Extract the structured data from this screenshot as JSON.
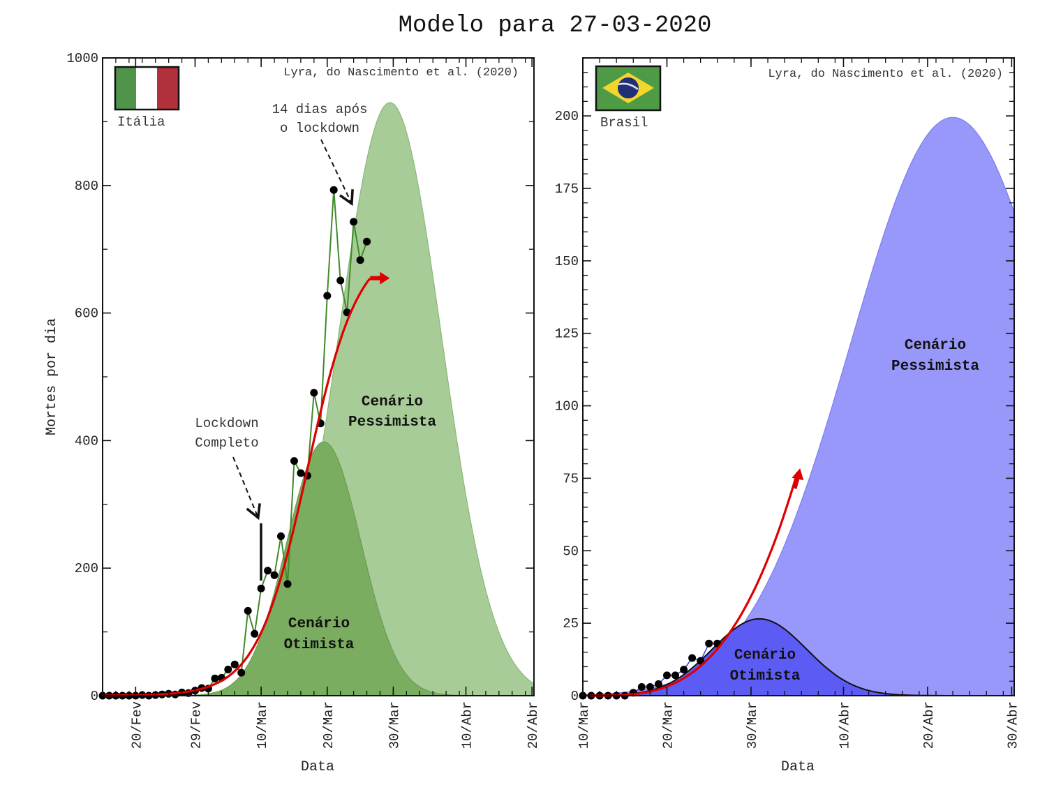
{
  "title": "Modelo para 27-03-2020",
  "colors": {
    "italy_pess": "#a8cc98",
    "italy_otim": "#7aad60",
    "italy_line": "#3f8a2a",
    "brasil_pess": "#9898fa",
    "brasil_otim": "#5c5cf5",
    "model": "#dd0000",
    "points": "#000000"
  },
  "chart_data": [
    {
      "type": "area",
      "panel": "italy",
      "title": "",
      "country_label": "Itália",
      "credit": "Lyra, do Nascimento et al. (2020)",
      "xlabel": "Data",
      "ylabel": "Mortes por dia",
      "ylim": [
        0,
        1000
      ],
      "yticks": [
        0,
        200,
        400,
        600,
        800,
        1000
      ],
      "xtick_labels": [
        "20/Fev",
        "29/Fev",
        "10/Mar",
        "20/Mar",
        "30/Mar",
        "10/Abr",
        "20/Abr"
      ],
      "xtick_days": [
        -19,
        -10,
        0,
        10,
        20,
        31,
        41
      ],
      "x_units": "days since 10/Mar",
      "xlim": [
        -24,
        41.3
      ],
      "annotations": [
        {
          "text_lines": [
            "Lockdown",
            "Completo"
          ]
        },
        {
          "text_lines": [
            "14 dias após",
            "o lockdown"
          ]
        }
      ],
      "lockdown_day": 0,
      "scenario_labels": {
        "otimista": [
          "Cenário",
          "Otimista"
        ],
        "pessimista": [
          "Cenário",
          "Pessimista"
        ]
      },
      "series": [
        {
          "name": "Cenário Pessimista",
          "kind": "gaussian",
          "peak": 930,
          "center_day": 19.5,
          "sigma": 7.8
        },
        {
          "name": "Cenário Otimista",
          "kind": "gaussian",
          "peak": 398,
          "center_day": 9.5,
          "sigma": 5.6
        },
        {
          "name": "Dados",
          "x": [
            -24,
            -23,
            -22,
            -21,
            -20,
            -19,
            -18,
            -17,
            -16,
            -15,
            -14,
            -13,
            -12,
            -11,
            -10,
            -9,
            -8,
            -7,
            -6,
            -5,
            -4,
            -3,
            -2,
            -1,
            0,
            1,
            2,
            3,
            4,
            5,
            6,
            7,
            8,
            9,
            10,
            11,
            12,
            13,
            14,
            15,
            16
          ],
          "y": [
            0,
            0,
            0,
            0,
            0,
            0,
            1,
            0,
            1,
            2,
            3,
            2,
            5,
            4,
            8,
            12,
            11,
            27,
            28,
            41,
            49,
            36,
            133,
            97,
            168,
            196,
            189,
            250,
            175,
            368,
            349,
            345,
            475,
            427,
            627,
            793,
            651,
            601,
            743,
            683,
            712
          ]
        },
        {
          "name": "Modelo",
          "kind": "logistic",
          "K": 710,
          "r": 0.26,
          "mid_day": 7
        }
      ]
    },
    {
      "type": "area",
      "panel": "brasil",
      "title": "",
      "country_label": "Brasil",
      "credit": "Lyra, do Nascimento et al. (2020)",
      "xlabel": "Data",
      "ylabel": "",
      "ylim": [
        0,
        220
      ],
      "yticks": [
        0,
        25,
        50,
        75,
        100,
        125,
        150,
        175,
        200
      ],
      "xtick_labels": [
        "10/Mar",
        "20/Mar",
        "30/Mar",
        "10/Abr",
        "20/Abr",
        "30/Abr"
      ],
      "xtick_days": [
        0,
        10,
        20,
        31,
        41,
        51
      ],
      "x_units": "days since 10/Mar",
      "xlim": [
        0,
        51.3
      ],
      "scenario_labels": {
        "otimista": [
          "Cenário",
          "Otimista"
        ],
        "pessimista": [
          "Cenário",
          "Pessimista"
        ]
      },
      "series": [
        {
          "name": "Cenário Pessimista",
          "kind": "gaussian",
          "peak": 199.5,
          "center_day": 44,
          "sigma": 12.2
        },
        {
          "name": "Cenário Otimista",
          "kind": "gaussian",
          "peak": 26.5,
          "center_day": 21,
          "sigma": 5.6
        },
        {
          "name": "Dados",
          "x": [
            0,
            1,
            2,
            3,
            4,
            5,
            6,
            7,
            8,
            9,
            10,
            11,
            12,
            13,
            14,
            15,
            16
          ],
          "y": [
            0,
            0,
            0,
            0,
            0,
            0,
            1,
            3,
            3,
            4,
            7,
            7,
            9,
            13,
            12,
            18,
            18
          ]
        },
        {
          "name": "Modelo",
          "kind": "power",
          "end_day": 25.5,
          "end_value": 77
        }
      ]
    }
  ]
}
